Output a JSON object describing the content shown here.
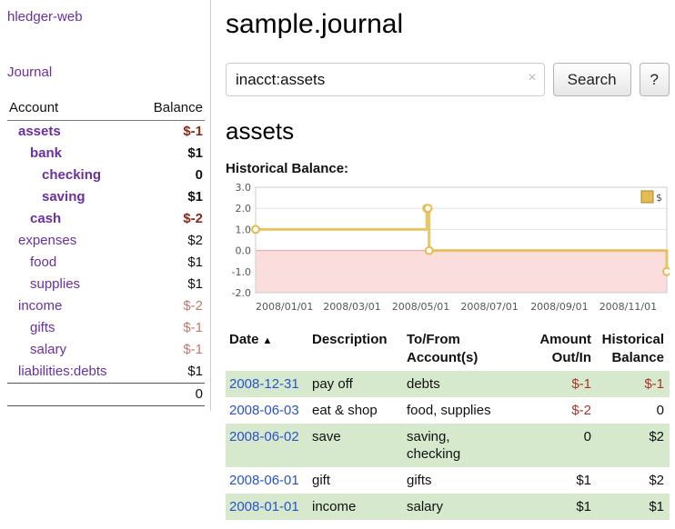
{
  "colors": {
    "purple": "#6a2fa3",
    "blue": "#2a52cc",
    "negstrong": "#8f2718",
    "negtable": "#aa342b",
    "negsoft": "#c17a6f",
    "stripe": "#d7e9cc"
  },
  "app": {
    "brand": "hledger-web",
    "nav_journal": "Journal"
  },
  "sidebar": {
    "columns": {
      "account": "Account",
      "balance": "Balance"
    },
    "accounts": [
      {
        "name": "assets",
        "balance": "$-1",
        "indent": 0,
        "bold": true,
        "name_style": "negstrong",
        "balance_style": "negstrong"
      },
      {
        "name": "bank",
        "balance": "$1",
        "indent": 1,
        "bold": true,
        "name_style": "",
        "balance_style": ""
      },
      {
        "name": "checking",
        "balance": "0",
        "indent": 2,
        "bold": true,
        "name_style": "",
        "balance_style": ""
      },
      {
        "name": "saving",
        "balance": "$1",
        "indent": 2,
        "bold": true,
        "name_style": "",
        "balance_style": ""
      },
      {
        "name": "cash",
        "balance": "$-2",
        "indent": 1,
        "bold": true,
        "name_style": "negstrong",
        "balance_style": "negstrong"
      },
      {
        "name": "expenses",
        "balance": "$2",
        "indent": 0,
        "bold": false,
        "name_style": "",
        "balance_style": ""
      },
      {
        "name": "food",
        "balance": "$1",
        "indent": 1,
        "bold": false,
        "name_style": "",
        "balance_style": ""
      },
      {
        "name": "supplies",
        "balance": "$1",
        "indent": 1,
        "bold": false,
        "name_style": "",
        "balance_style": ""
      },
      {
        "name": "income",
        "balance": "$-2",
        "indent": 0,
        "bold": false,
        "name_style": "",
        "balance_style": "negsoft"
      },
      {
        "name": "gifts",
        "balance": "$-1",
        "indent": 1,
        "bold": false,
        "name_style": "",
        "balance_style": "negsoft"
      },
      {
        "name": "salary",
        "balance": "$-1",
        "indent": 1,
        "bold": false,
        "name_style": "",
        "balance_style": "negsoft"
      },
      {
        "name": "liabilities:debts",
        "balance": "$1",
        "indent": 0,
        "bold": false,
        "name_style": "",
        "balance_style": ""
      }
    ],
    "total": "0"
  },
  "main": {
    "title": "sample.journal",
    "search": {
      "value": "inacct:assets",
      "clear_icon": "×",
      "search_button": "Search",
      "help_button": "?"
    },
    "heading": "assets",
    "chart_label": "Historical Balance:"
  },
  "chart_data": {
    "type": "line",
    "step": true,
    "title": "Historical Balance:",
    "x_range": [
      "2008-01-01",
      "2008-12-31"
    ],
    "ylim": [
      -2,
      3
    ],
    "yticks": [
      3,
      2,
      1,
      0,
      -1,
      -2
    ],
    "xticks": [
      [
        "2008-01-01",
        "2008/01/01"
      ],
      [
        "2008-03-01",
        "2008/03/01"
      ],
      [
        "2008-05-01",
        "2008/05/01"
      ],
      [
        "2008-07-01",
        "2008/07/01"
      ],
      [
        "2008-09-01",
        "2008/09/01"
      ],
      [
        "2008-11-01",
        "2008/11/01"
      ]
    ],
    "series": [
      {
        "name": "$",
        "color": "#e3bd51",
        "marker_fill": "#fffdf5",
        "points": [
          [
            "2008-01-01",
            1
          ],
          [
            "2008-06-01",
            2
          ],
          [
            "2008-06-02",
            2
          ],
          [
            "2008-06-03",
            0
          ],
          [
            "2008-12-31",
            -1
          ]
        ]
      }
    ],
    "negative_region_fill": "#fbdddd",
    "zero_line_color": "#f09f9f",
    "grid": "horizontal",
    "legend_position": "top-right"
  },
  "register": {
    "headers": [
      {
        "key": "date",
        "lines": [
          "Date"
        ],
        "align": "left",
        "sort_icon": "▲"
      },
      {
        "key": "description",
        "lines": [
          "Description"
        ],
        "align": "left"
      },
      {
        "key": "accounts",
        "lines": [
          "To/From",
          "Account(s)"
        ],
        "align": "left"
      },
      {
        "key": "amount",
        "lines": [
          "Amount",
          "Out/In"
        ],
        "align": "right"
      },
      {
        "key": "balance",
        "lines": [
          "Historical",
          "Balance"
        ],
        "align": "right"
      }
    ],
    "rows": [
      {
        "date": "2008-12-31",
        "description": "pay off",
        "accounts": "debts",
        "amount": "$-1",
        "amount_neg": true,
        "balance": "$-1",
        "balance_neg": true,
        "shade": true
      },
      {
        "date": "2008-06-03",
        "description": "eat & shop",
        "accounts": "food, supplies",
        "amount": "$-2",
        "amount_neg": true,
        "balance": "0",
        "balance_neg": false,
        "shade": false
      },
      {
        "date": "2008-06-02",
        "description": "save",
        "accounts": "saving,\nchecking",
        "amount": "0",
        "amount_neg": false,
        "balance": "$2",
        "balance_neg": false,
        "shade": true
      },
      {
        "date": "2008-06-01",
        "description": "gift",
        "accounts": "gifts",
        "amount": "$1",
        "amount_neg": false,
        "balance": "$2",
        "balance_neg": false,
        "shade": false
      },
      {
        "date": "2008-01-01",
        "description": "income",
        "accounts": "salary",
        "amount": "$1",
        "amount_neg": false,
        "balance": "$1",
        "balance_neg": false,
        "shade": true
      }
    ]
  }
}
